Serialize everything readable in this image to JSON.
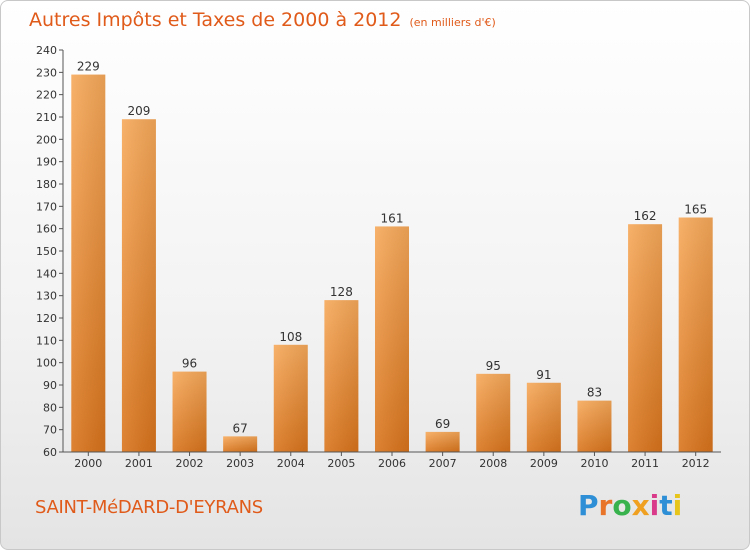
{
  "header": {
    "title": "Autres Impôts et Taxes de 2000 à 2012",
    "subtitle": "(en milliers d'€)"
  },
  "footer": {
    "city": "SAINT-MéDARD-D'EYRANS",
    "brand": "Proxiti"
  },
  "colors": {
    "bar_light": "#f7a95a",
    "bar_dark": "#d9741c",
    "title": "#e05a1a"
  },
  "chart_data": {
    "type": "bar",
    "title": "Autres Impôts et Taxes de 2000 à 2012",
    "subtitle": "(en milliers d'€)",
    "categories": [
      "2000",
      "2001",
      "2002",
      "2003",
      "2004",
      "2005",
      "2006",
      "2007",
      "2008",
      "2009",
      "2010",
      "2011",
      "2012"
    ],
    "values": [
      229,
      209,
      96,
      67,
      108,
      128,
      161,
      69,
      95,
      91,
      83,
      162,
      165
    ],
    "ylim": [
      60,
      240
    ],
    "yticks": [
      60,
      70,
      80,
      90,
      100,
      110,
      120,
      130,
      140,
      150,
      160,
      170,
      180,
      190,
      200,
      210,
      220,
      230,
      240
    ],
    "grid": false,
    "data_labels": true
  }
}
